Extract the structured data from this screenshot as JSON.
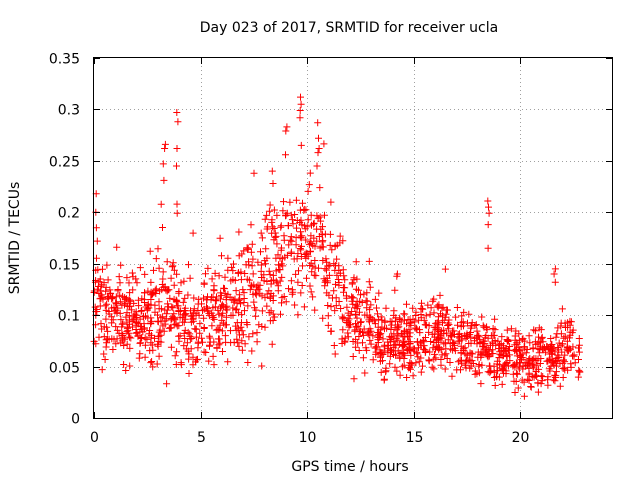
{
  "chart_data": {
    "type": "scatter",
    "title": "Day 023 of 2017, SRMTID for receiver ucla",
    "xlabel": "GPS time / hours",
    "ylabel": "SRMTID / TECUs",
    "xlim": [
      0,
      24.3
    ],
    "ylim": [
      0,
      0.35
    ],
    "x_ticks": [
      0,
      5,
      10,
      15,
      20
    ],
    "x_tick_labels": [
      "0",
      "5",
      "10",
      "15",
      "20"
    ],
    "y_ticks": [
      0,
      0.05,
      0.1,
      0.15,
      0.2,
      0.25,
      0.3,
      0.35
    ],
    "y_tick_labels": [
      "0",
      "0.05",
      "0.1",
      "0.15",
      "0.2",
      "0.25",
      "0.3",
      "0.35"
    ],
    "grid": true,
    "marker": "+",
    "color": "#ff0000",
    "trend": [
      {
        "x": 0.0,
        "y": 0.11,
        "spread": 0.03
      },
      {
        "x": 1.0,
        "y": 0.1,
        "spread": 0.028
      },
      {
        "x": 2.0,
        "y": 0.095,
        "spread": 0.03
      },
      {
        "x": 3.0,
        "y": 0.1,
        "spread": 0.035
      },
      {
        "x": 4.0,
        "y": 0.1,
        "spread": 0.035
      },
      {
        "x": 5.0,
        "y": 0.085,
        "spread": 0.03
      },
      {
        "x": 6.0,
        "y": 0.105,
        "spread": 0.035
      },
      {
        "x": 7.0,
        "y": 0.115,
        "spread": 0.04
      },
      {
        "x": 8.0,
        "y": 0.14,
        "spread": 0.045
      },
      {
        "x": 9.0,
        "y": 0.155,
        "spread": 0.045
      },
      {
        "x": 10.0,
        "y": 0.175,
        "spread": 0.045
      },
      {
        "x": 11.0,
        "y": 0.14,
        "spread": 0.04
      },
      {
        "x": 12.0,
        "y": 0.1,
        "spread": 0.03
      },
      {
        "x": 13.0,
        "y": 0.085,
        "spread": 0.025
      },
      {
        "x": 14.0,
        "y": 0.07,
        "spread": 0.022
      },
      {
        "x": 15.0,
        "y": 0.075,
        "spread": 0.025
      },
      {
        "x": 16.0,
        "y": 0.08,
        "spread": 0.025
      },
      {
        "x": 17.0,
        "y": 0.075,
        "spread": 0.022
      },
      {
        "x": 18.0,
        "y": 0.07,
        "spread": 0.022
      },
      {
        "x": 19.0,
        "y": 0.06,
        "spread": 0.02
      },
      {
        "x": 20.0,
        "y": 0.055,
        "spread": 0.018
      },
      {
        "x": 21.0,
        "y": 0.06,
        "spread": 0.02
      },
      {
        "x": 22.0,
        "y": 0.065,
        "spread": 0.022
      },
      {
        "x": 22.8,
        "y": 0.06,
        "spread": 0.02
      }
    ],
    "spikes": [
      {
        "x": 0.1,
        "y": [
          0.218,
          0.2,
          0.185,
          0.172
        ]
      },
      {
        "x": 3.3,
        "y": [
          0.266,
          0.262,
          0.247,
          0.231
        ]
      },
      {
        "x": 3.9,
        "y": [
          0.297,
          0.288,
          0.262,
          0.245,
          0.208,
          0.199
        ]
      },
      {
        "x": 8.4,
        "y": [
          0.24,
          0.228
        ]
      },
      {
        "x": 9.0,
        "y": [
          0.283,
          0.279,
          0.256
        ]
      },
      {
        "x": 9.7,
        "y": [
          0.312,
          0.305,
          0.299,
          0.292,
          0.265
        ]
      },
      {
        "x": 10.5,
        "y": [
          0.287,
          0.272,
          0.262,
          0.258,
          0.245
        ]
      },
      {
        "x": 18.5,
        "y": [
          0.211,
          0.205,
          0.199,
          0.188,
          0.165
        ]
      },
      {
        "x": 21.6,
        "y": [
          0.145,
          0.14,
          0.132
        ]
      }
    ],
    "n_points": 1700,
    "x_range_observed": [
      0,
      22.8
    ]
  }
}
